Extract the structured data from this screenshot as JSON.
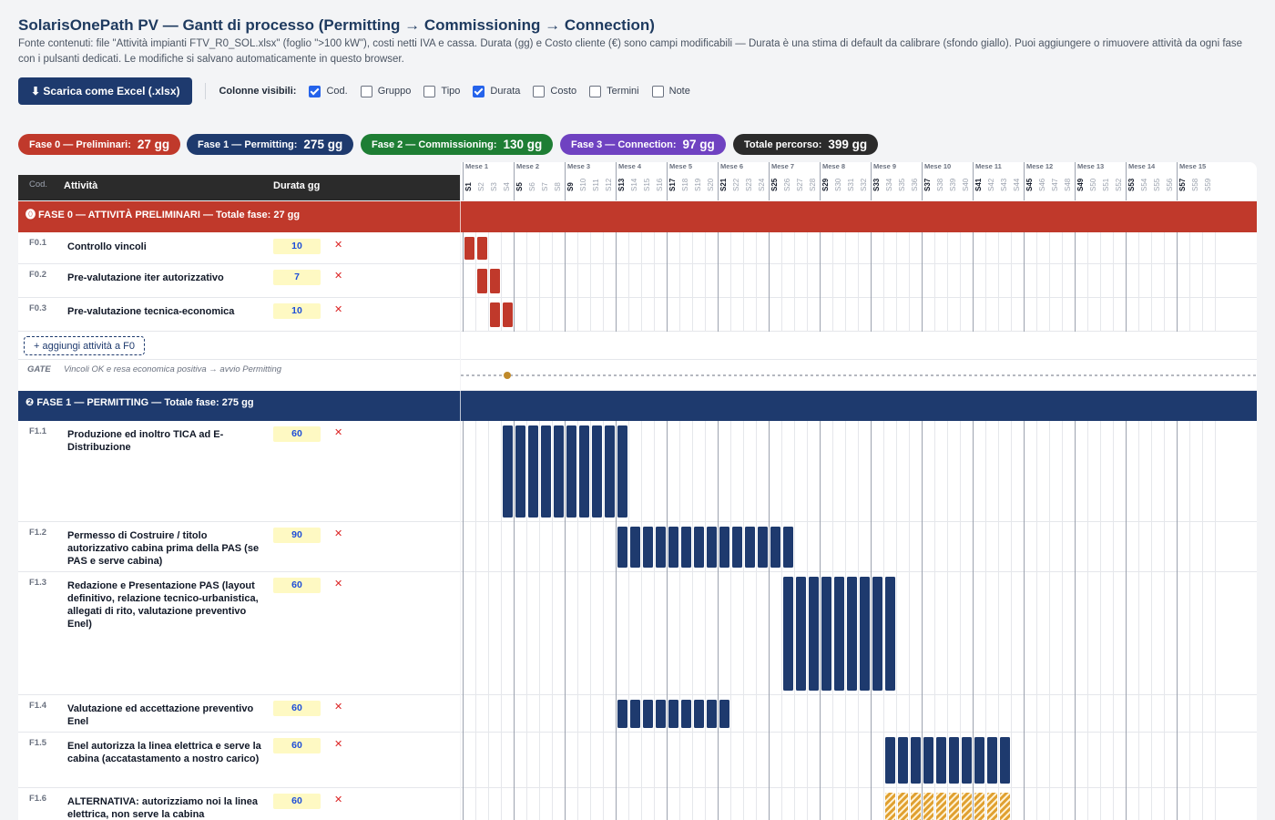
{
  "header": {
    "title": "SolarisOnePath PV — Gantt di processo (Permitting → Commissioning → Connection)",
    "subtitle": "Fonte contenuti: file \"Attività impianti FTV_R0_SOL.xlsx\" (foglio \">100 kW\"), costi netti IVA e cassa. Durata (gg) e Costo cliente (€) sono campi modificabili — Durata è una stima di default da calibrare (sfondo giallo). Puoi aggiungere o rimuovere attività da ogni fase con i pulsanti dedicati. Le modifiche si salvano automaticamente in questo browser."
  },
  "toolbar": {
    "download_label": "⬇ Scarica come Excel (.xlsx)",
    "columns_label": "Colonne visibili:",
    "columns": [
      {
        "label": "Cod.",
        "checked": true
      },
      {
        "label": "Gruppo",
        "checked": false
      },
      {
        "label": "Tipo",
        "checked": false
      },
      {
        "label": "Durata",
        "checked": true
      },
      {
        "label": "Costo",
        "checked": false
      },
      {
        "label": "Termini",
        "checked": false
      },
      {
        "label": "Note",
        "checked": false
      }
    ]
  },
  "summary": [
    {
      "label": "Fase 0 — Preliminari:",
      "value": "27 gg",
      "color": "#c0392b"
    },
    {
      "label": "Fase 1 — Permitting:",
      "value": "275 gg",
      "color": "#1e3a6e"
    },
    {
      "label": "Fase 2 — Commissioning:",
      "value": "130 gg",
      "color": "#1e7e34"
    },
    {
      "label": "Fase 3 — Connection:",
      "value": "97 gg",
      "color": "#6f42c1"
    },
    {
      "label": "Totale percorso:",
      "value": "399 gg",
      "color": "#2b2b2b"
    }
  ],
  "table": {
    "col_code": "Cod.",
    "col_activity": "Attività",
    "col_duration": "Durata gg"
  },
  "timeline": {
    "month_prefix": "Mese",
    "months": [
      "1",
      "2",
      "3",
      "4",
      "5",
      "6",
      "7",
      "8",
      "9",
      "10",
      "11",
      "12",
      "13",
      "14",
      "15"
    ],
    "weeks": [
      "S1",
      "S2",
      "S3",
      "S4",
      "S5",
      "S6",
      "S7",
      "S8",
      "S9",
      "S10",
      "S11",
      "S12",
      "S13",
      "S14",
      "S15",
      "S16",
      "S17",
      "S18",
      "S19",
      "S20",
      "S21",
      "S22",
      "S23",
      "S24",
      "S25",
      "S26",
      "S27",
      "S28",
      "S29",
      "S30",
      "S31",
      "S32",
      "S33",
      "S34",
      "S35",
      "S36",
      "S37",
      "S38",
      "S39",
      "S40",
      "S41",
      "S42",
      "S43",
      "S44",
      "S45",
      "S46",
      "S47",
      "S48",
      "S49",
      "S50",
      "S51",
      "S52",
      "S53",
      "S54",
      "S55",
      "S56",
      "S57",
      "S58",
      "S59"
    ]
  },
  "phase0": {
    "title": "⓿ FASE 0 — ATTIVITÀ PRELIMINARI — Totale fase: 27 gg",
    "color": "#c0392b",
    "activities": [
      {
        "code": "F0.1",
        "name": "Controllo vincoli",
        "duration": "10",
        "start_week": 0,
        "weeks": 2
      },
      {
        "code": "F0.2",
        "name": "Pre-valutazione iter autorizzativo",
        "duration": "7",
        "start_week": 1,
        "weeks": 2
      },
      {
        "code": "F0.3",
        "name": "Pre-valutazione tecnica-economica",
        "duration": "10",
        "start_week": 2,
        "weeks": 2
      }
    ],
    "add_label": "+ aggiungi attività a F0",
    "gate_label": "GATE",
    "gate_text": "Vincoli OK e resa economica positiva → avvio Permitting",
    "gate_week": 3.5
  },
  "phase1": {
    "title": "❷ FASE 1 — PERMITTING — Totale fase: 275 gg",
    "color": "#1e3a6e",
    "alt_color": "#e0a030",
    "activities": [
      {
        "code": "F1.1",
        "name": "Produzione ed inoltro TICA ad E-Distribuzione",
        "duration": "60",
        "start_week": 3,
        "weeks": 10,
        "alt": false
      },
      {
        "code": "F1.2",
        "name": "Permesso di Costruire / titolo autorizzativo cabina prima della PAS (se PAS e serve cabina)",
        "duration": "90",
        "start_week": 12,
        "weeks": 14,
        "alt": false
      },
      {
        "code": "F1.3",
        "name": "Redazione e Presentazione PAS (layout definitivo, relazione tecnico-urbanistica, allegati di rito, valutazione preventivo Enel)",
        "duration": "60",
        "start_week": 25,
        "weeks": 9,
        "alt": false
      },
      {
        "code": "F1.4",
        "name": "Valutazione ed accettazione preventivo Enel",
        "duration": "60",
        "start_week": 12,
        "weeks": 9,
        "alt": false
      },
      {
        "code": "F1.5",
        "name": "Enel autorizza la linea elettrica e serve la cabina (accatastamento a nostro carico)",
        "duration": "60",
        "start_week": 33,
        "weeks": 10,
        "alt": false
      },
      {
        "code": "F1.6",
        "name": "ALTERNATIVA: autorizziamo noi la linea elettrica, non serve la cabina",
        "duration": "60",
        "start_week": 33,
        "weeks": 10,
        "alt": true
      }
    ]
  }
}
